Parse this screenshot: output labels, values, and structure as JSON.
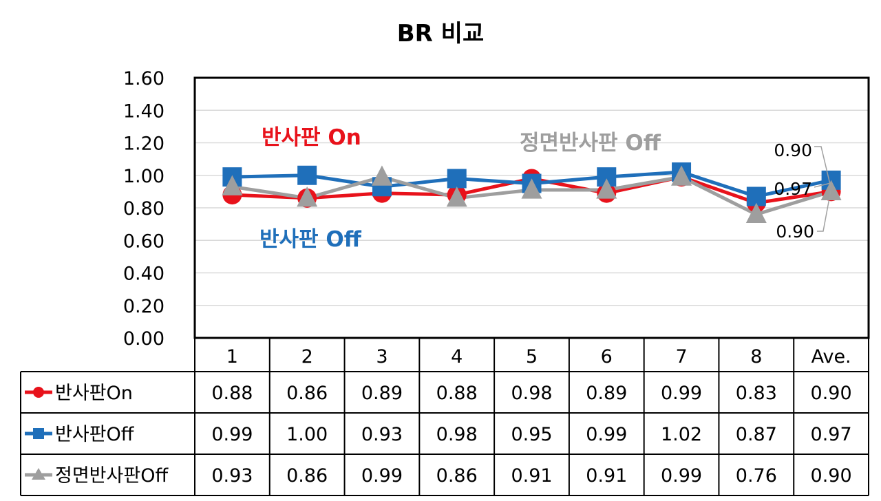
{
  "chart_data": {
    "type": "line",
    "title": "BR 비교",
    "categories": [
      "1",
      "2",
      "3",
      "4",
      "5",
      "6",
      "7",
      "8",
      "Ave."
    ],
    "ylim": [
      0,
      1.6
    ],
    "yticks": [
      "0.00",
      "0.20",
      "0.40",
      "0.60",
      "0.80",
      "1.00",
      "1.20",
      "1.40",
      "1.60"
    ],
    "grid": true,
    "legend": "data-table",
    "series": [
      {
        "name": "반사판On",
        "color": "#e8121b",
        "marker": "circle",
        "values": [
          0.88,
          0.86,
          0.89,
          0.88,
          0.98,
          0.89,
          0.99,
          0.83,
          0.9
        ],
        "labels": [
          "0.88",
          "0.86",
          "0.89",
          "0.88",
          "0.98",
          "0.89",
          "0.99",
          "0.83",
          "0.90"
        ]
      },
      {
        "name": "반사판Off",
        "color": "#1f6fba",
        "marker": "square",
        "values": [
          0.99,
          1.0,
          0.93,
          0.98,
          0.95,
          0.99,
          1.02,
          0.87,
          0.97
        ],
        "labels": [
          "0.99",
          "1.00",
          "0.93",
          "0.98",
          "0.95",
          "0.99",
          "1.02",
          "0.87",
          "0.97"
        ]
      },
      {
        "name": "정면반사판Off",
        "color": "#9e9e9e",
        "marker": "triangle",
        "values": [
          0.93,
          0.86,
          0.99,
          0.86,
          0.91,
          0.91,
          0.99,
          0.76,
          0.9
        ],
        "labels": [
          "0.93",
          "0.86",
          "0.99",
          "0.86",
          "0.91",
          "0.91",
          "0.99",
          "0.76",
          "0.90"
        ]
      }
    ],
    "annotations": [
      {
        "text": "반사판 On",
        "color": "#e8121b"
      },
      {
        "text": "반사판 Off",
        "color": "#1f6fba"
      },
      {
        "text": "정면반사판 Off",
        "color": "#9e9e9e"
      }
    ],
    "average_labels": [
      "0.90",
      "0.97",
      "0.90"
    ]
  }
}
